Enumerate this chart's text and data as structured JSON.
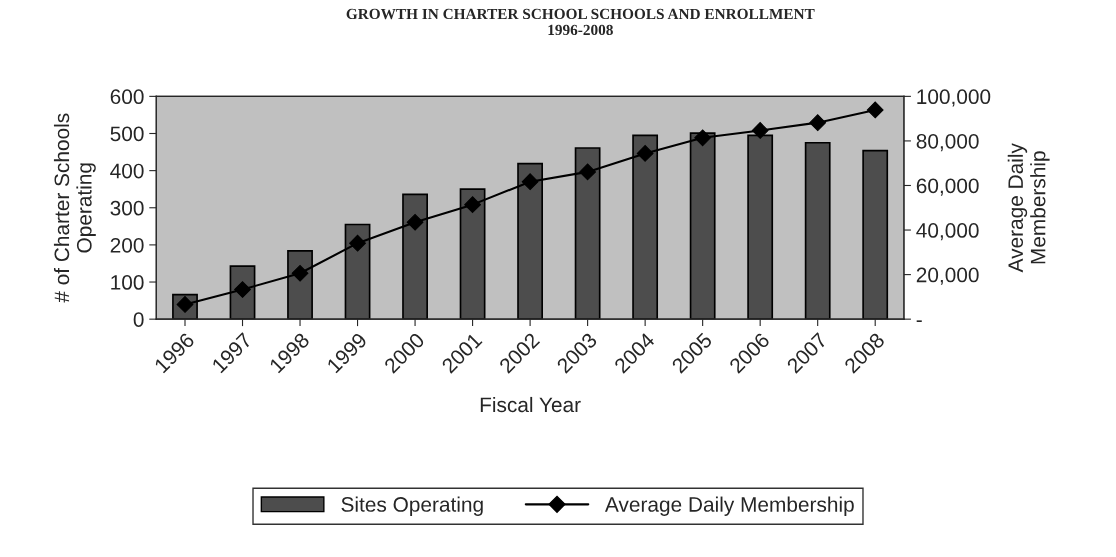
{
  "chart_data": {
    "type": "bar",
    "title": "GROWTH IN CHARTER SCHOOL SCHOOLS AND ENROLLMENT\n1996-2008",
    "xlabel": "Fiscal Year",
    "ylabel": "# of Charter Schools\nOperating",
    "y2label": "Average Daily\nMembership",
    "categories": [
      "1996",
      "1997",
      "1998",
      "1999",
      "2000",
      "2001",
      "2002",
      "2003",
      "2004",
      "2005",
      "2006",
      "2007",
      "2008"
    ],
    "series": [
      {
        "name": "Sites Operating",
        "color": "#4d4d4d",
        "values": [
          66,
          143,
          184,
          255,
          336,
          350,
          419,
          461,
          495,
          501,
          495,
          475,
          454
        ]
      },
      {
        "name": "Average Daily Membership",
        "type": "line",
        "axis": "y2",
        "color": "#000000",
        "marker": "diamond",
        "values": [
          6600,
          13300,
          20600,
          34100,
          43500,
          51400,
          61700,
          66100,
          74400,
          81400,
          84700,
          88200,
          93900
        ]
      }
    ],
    "ylim": [
      0,
      600
    ],
    "yticks": [
      0,
      100,
      200,
      300,
      400,
      500,
      600
    ],
    "y2lim": [
      0,
      100000
    ],
    "y2ticks": [
      {
        "value": 0,
        "label": "-"
      },
      {
        "value": 20000,
        "label": "20,000"
      },
      {
        "value": 40000,
        "label": "40,000"
      },
      {
        "value": 60000,
        "label": "60,000"
      },
      {
        "value": 80000,
        "label": "80,000"
      },
      {
        "value": 100000,
        "label": "100,000"
      }
    ],
    "grid": false,
    "legend": "bottom"
  }
}
